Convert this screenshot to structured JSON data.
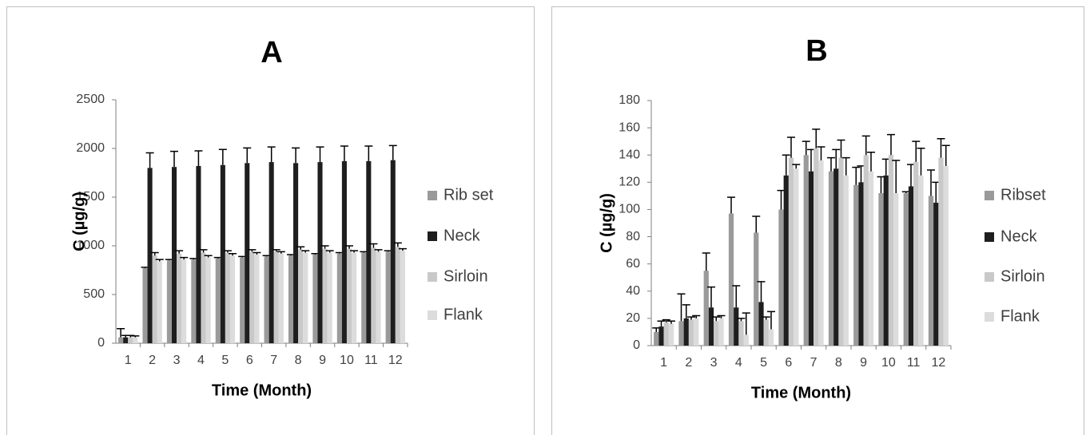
{
  "chart_data": [
    {
      "type": "bar",
      "title": "A",
      "x_label": "Time (Month)",
      "y_label": "C (µg/g)",
      "categories": [
        "1",
        "2",
        "3",
        "4",
        "5",
        "6",
        "7",
        "8",
        "9",
        "10",
        "11",
        "12"
      ],
      "ylim": [
        0,
        2500
      ],
      "yticks": [
        0,
        500,
        1000,
        1500,
        2000,
        2500
      ],
      "series": [
        {
          "name": "Rib set",
          "color": "#9a9a9a",
          "values": [
            60,
            770,
            850,
            860,
            870,
            880,
            890,
            900,
            910,
            920,
            930,
            940
          ],
          "errors": [
            90,
            10,
            10,
            10,
            10,
            10,
            10,
            10,
            10,
            10,
            10,
            10
          ]
        },
        {
          "name": "Neck",
          "color": "#1e1e1e",
          "values": [
            60,
            1800,
            1810,
            1820,
            1830,
            1850,
            1860,
            1850,
            1860,
            1870,
            1870,
            1880
          ],
          "errors": [
            20,
            155,
            160,
            155,
            160,
            155,
            155,
            155,
            155,
            155,
            155,
            150
          ]
        },
        {
          "name": "Sirloin",
          "color": "#c9c9c9",
          "values": [
            60,
            900,
            920,
            930,
            930,
            940,
            940,
            960,
            970,
            970,
            980,
            990
          ],
          "errors": [
            20,
            30,
            30,
            30,
            20,
            20,
            20,
            30,
            30,
            30,
            40,
            40
          ]
        },
        {
          "name": "Flank",
          "color": "#dcdcdc",
          "values": [
            60,
            840,
            860,
            880,
            900,
            910,
            920,
            930,
            930,
            930,
            940,
            950
          ],
          "errors": [
            15,
            20,
            20,
            20,
            20,
            20,
            20,
            20,
            20,
            20,
            20,
            20
          ]
        }
      ]
    },
    {
      "type": "bar",
      "title": "B",
      "x_label": "Time (Month)",
      "y_label": "C (µg/g)",
      "categories": [
        "1",
        "2",
        "3",
        "4",
        "5",
        "6",
        "7",
        "8",
        "9",
        "10",
        "11",
        "12"
      ],
      "ylim": [
        0,
        180
      ],
      "yticks": [
        0,
        20,
        40,
        60,
        80,
        100,
        120,
        140,
        160,
        180
      ],
      "series": [
        {
          "name": "Ribset",
          "color": "#9a9a9a",
          "values": [
            10,
            18,
            55,
            97,
            83,
            100,
            140,
            128,
            118,
            112,
            112,
            110
          ],
          "errors": [
            3,
            20,
            13,
            12,
            12,
            14,
            10,
            10,
            13,
            12,
            1,
            19
          ]
        },
        {
          "name": "Neck",
          "color": "#1e1e1e",
          "values": [
            14,
            20,
            28,
            28,
            32,
            125,
            128,
            130,
            120,
            125,
            117,
            105
          ],
          "errors": [
            4,
            10,
            15,
            16,
            15,
            15,
            16,
            14,
            12,
            12,
            16,
            15
          ]
        },
        {
          "name": "Sirloin",
          "color": "#c9c9c9",
          "values": [
            17,
            19,
            18,
            18,
            19,
            138,
            145,
            138,
            140,
            140,
            135,
            138
          ],
          "errors": [
            2,
            2,
            3,
            2,
            2,
            15,
            14,
            13,
            14,
            15,
            15,
            14
          ]
        },
        {
          "name": "Flank",
          "color": "#dcdcdc",
          "values": [
            16,
            20,
            20,
            8,
            12,
            130,
            136,
            125,
            128,
            112,
            125,
            132
          ],
          "errors": [
            2,
            2,
            2,
            16,
            13,
            3,
            10,
            13,
            14,
            24,
            20,
            15
          ]
        }
      ]
    }
  ]
}
